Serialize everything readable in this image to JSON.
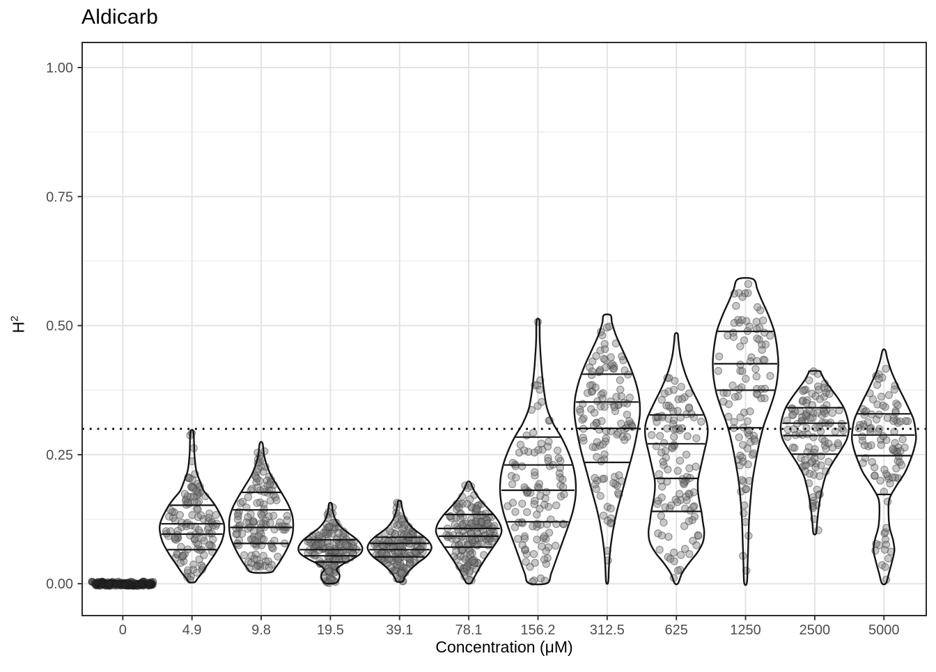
{
  "title": "Aldicarb",
  "axes": {
    "x_label": "Concentration (μM)",
    "y_label": "H",
    "y_label_sup": "2",
    "y_ticks": [
      {
        "label": "0.00",
        "value": 0.0
      },
      {
        "label": "0.25",
        "value": 0.25
      },
      {
        "label": "0.50",
        "value": 0.5
      },
      {
        "label": "0.75",
        "value": 0.75
      },
      {
        "label": "1.00",
        "value": 1.0
      }
    ],
    "y_minor": [
      0.125,
      0.375,
      0.625,
      0.875
    ]
  },
  "style": {
    "panel_border": "#2b2b2b",
    "grid_major": "#e4e4e4",
    "grid_minor": "#efefef",
    "tick_color": "#333333",
    "tick_label_color": "#4d4d4d",
    "violin_stroke": "#141414",
    "point_fill": "rgba(125,125,125,0.42)",
    "point_stroke": "rgba(65,65,65,0.5)",
    "zero_point_fill": "rgba(35,35,35,0.5)",
    "ref_line_color": "#000000"
  },
  "chart_data": {
    "type": "violin",
    "title": "Aldicarb",
    "xlabel": "Concentration (μM)",
    "ylabel": "H^2",
    "ylim": [
      0,
      1.0
    ],
    "grid": "on",
    "reference_line": {
      "value": 0.3,
      "style": "dotted"
    },
    "quantiles_drawn": [
      0.2,
      0.4,
      0.6,
      0.8
    ],
    "categories": [
      "0",
      "4.9",
      "9.8",
      "19.5",
      "39.1",
      "78.1",
      "156.2",
      "312.5",
      "625",
      "1250",
      "2500",
      "5000"
    ],
    "groups": [
      {
        "label": "0",
        "all_zero": true,
        "n": 130,
        "min": 0,
        "max": 0,
        "quantile_lines": [],
        "profile": [
          [
            0,
            44
          ]
        ]
      },
      {
        "label": "4.9",
        "n": 120,
        "min": 0.0,
        "max": 0.295,
        "quantile_lines": [
          0.066,
          0.096,
          0.116,
          0.152
        ],
        "profile": [
          [
            0.003,
            4
          ],
          [
            0.01,
            8
          ],
          [
            0.02,
            14
          ],
          [
            0.04,
            24
          ],
          [
            0.06,
            34
          ],
          [
            0.08,
            42
          ],
          [
            0.1,
            46
          ],
          [
            0.115,
            46
          ],
          [
            0.13,
            42
          ],
          [
            0.15,
            34
          ],
          [
            0.165,
            26
          ],
          [
            0.18,
            17
          ],
          [
            0.2,
            11
          ],
          [
            0.22,
            6
          ],
          [
            0.25,
            3.5
          ],
          [
            0.27,
            3
          ],
          [
            0.295,
            2
          ]
        ]
      },
      {
        "label": "9.8",
        "n": 130,
        "min": 0.01,
        "max": 0.275,
        "quantile_lines": [
          0.078,
          0.109,
          0.143,
          0.177
        ],
        "profile": [
          [
            0.022,
            13
          ],
          [
            0.03,
            20
          ],
          [
            0.05,
            30
          ],
          [
            0.07,
            38
          ],
          [
            0.09,
            44
          ],
          [
            0.11,
            46
          ],
          [
            0.13,
            45
          ],
          [
            0.15,
            40
          ],
          [
            0.17,
            32
          ],
          [
            0.19,
            23
          ],
          [
            0.21,
            14
          ],
          [
            0.23,
            8
          ],
          [
            0.25,
            4
          ],
          [
            0.272,
            2
          ]
        ]
      },
      {
        "label": "19.5",
        "n": 150,
        "min": 0.0,
        "max": 0.16,
        "quantile_lines": [
          0.042,
          0.054,
          0.066,
          0.085
        ],
        "profile": [
          [
            0.001,
            7
          ],
          [
            0.008,
            12
          ],
          [
            0.018,
            13
          ],
          [
            0.028,
            9
          ],
          [
            0.038,
            18
          ],
          [
            0.048,
            32
          ],
          [
            0.058,
            43
          ],
          [
            0.068,
            46
          ],
          [
            0.078,
            43
          ],
          [
            0.088,
            36
          ],
          [
            0.098,
            26
          ],
          [
            0.11,
            15
          ],
          [
            0.125,
            7
          ],
          [
            0.14,
            3.5
          ],
          [
            0.155,
            2
          ]
        ]
      },
      {
        "label": "39.1",
        "n": 150,
        "min": 0.004,
        "max": 0.16,
        "quantile_lines": [
          0.052,
          0.066,
          0.078,
          0.09
        ],
        "profile": [
          [
            0.004,
            4
          ],
          [
            0.012,
            7
          ],
          [
            0.025,
            14
          ],
          [
            0.04,
            26
          ],
          [
            0.05,
            36
          ],
          [
            0.06,
            43
          ],
          [
            0.07,
            46
          ],
          [
            0.08,
            43
          ],
          [
            0.09,
            36
          ],
          [
            0.1,
            26
          ],
          [
            0.11,
            17
          ],
          [
            0.125,
            9
          ],
          [
            0.14,
            5
          ],
          [
            0.152,
            3
          ],
          [
            0.16,
            2
          ]
        ]
      },
      {
        "label": "78.1",
        "n": 160,
        "min": 0.0,
        "max": 0.197,
        "quantile_lines": [
          0.071,
          0.092,
          0.107,
          0.134
        ],
        "profile": [
          [
            0.001,
            3
          ],
          [
            0.01,
            7
          ],
          [
            0.025,
            13
          ],
          [
            0.045,
            22
          ],
          [
            0.065,
            32
          ],
          [
            0.085,
            42
          ],
          [
            0.1,
            47
          ],
          [
            0.115,
            45
          ],
          [
            0.13,
            38
          ],
          [
            0.145,
            28
          ],
          [
            0.16,
            18
          ],
          [
            0.175,
            10
          ],
          [
            0.188,
            5
          ],
          [
            0.197,
            2
          ]
        ]
      },
      {
        "label": "156.2",
        "n": 110,
        "min": 0.0,
        "max": 0.51,
        "quantile_lines": [
          0.12,
          0.181,
          0.23,
          0.284
        ],
        "profile": [
          [
            0.001,
            13
          ],
          [
            0.02,
            19
          ],
          [
            0.05,
            27
          ],
          [
            0.08,
            35
          ],
          [
            0.11,
            43
          ],
          [
            0.14,
            50
          ],
          [
            0.17,
            54
          ],
          [
            0.2,
            54
          ],
          [
            0.23,
            50
          ],
          [
            0.26,
            42
          ],
          [
            0.285,
            33
          ],
          [
            0.31,
            22
          ],
          [
            0.34,
            13
          ],
          [
            0.38,
            8
          ],
          [
            0.42,
            5
          ],
          [
            0.46,
            3
          ],
          [
            0.48,
            2.5
          ],
          [
            0.51,
            2
          ]
        ]
      },
      {
        "label": "312.5",
        "n": 120,
        "min": 0.0,
        "max": 0.52,
        "quantile_lines": [
          0.235,
          0.301,
          0.352,
          0.406
        ],
        "profile": [
          [
            0.003,
            1.5
          ],
          [
            0.03,
            2.5
          ],
          [
            0.06,
            4
          ],
          [
            0.1,
            8
          ],
          [
            0.14,
            14
          ],
          [
            0.18,
            22
          ],
          [
            0.22,
            30
          ],
          [
            0.26,
            38
          ],
          [
            0.3,
            44
          ],
          [
            0.33,
            47
          ],
          [
            0.36,
            46
          ],
          [
            0.39,
            41
          ],
          [
            0.42,
            33
          ],
          [
            0.45,
            23
          ],
          [
            0.48,
            13
          ],
          [
            0.505,
            7
          ],
          [
            0.52,
            5
          ]
        ]
      },
      {
        "label": "625",
        "n": 115,
        "min": 0.0,
        "max": 0.484,
        "quantile_lines": [
          0.14,
          0.204,
          0.271,
          0.327
        ],
        "profile": [
          [
            0.001,
            2.5
          ],
          [
            0.02,
            8
          ],
          [
            0.04,
            18
          ],
          [
            0.06,
            30
          ],
          [
            0.08,
            38
          ],
          [
            0.1,
            40
          ],
          [
            0.12,
            38
          ],
          [
            0.14,
            36
          ],
          [
            0.16,
            33
          ],
          [
            0.18,
            31
          ],
          [
            0.2,
            31
          ],
          [
            0.22,
            34
          ],
          [
            0.25,
            39
          ],
          [
            0.28,
            44
          ],
          [
            0.3,
            45
          ],
          [
            0.32,
            42
          ],
          [
            0.35,
            32
          ],
          [
            0.38,
            21
          ],
          [
            0.41,
            12
          ],
          [
            0.44,
            6
          ],
          [
            0.47,
            3
          ],
          [
            0.484,
            2
          ]
        ]
      },
      {
        "label": "1250",
        "n": 100,
        "min": 0.0,
        "max": 0.59,
        "quantile_lines": [
          0.302,
          0.375,
          0.426,
          0.489
        ],
        "profile": [
          [
            0.002,
            2
          ],
          [
            0.04,
            3
          ],
          [
            0.08,
            4
          ],
          [
            0.12,
            5
          ],
          [
            0.16,
            7
          ],
          [
            0.2,
            10
          ],
          [
            0.24,
            15
          ],
          [
            0.28,
            21
          ],
          [
            0.31,
            27
          ],
          [
            0.34,
            35
          ],
          [
            0.37,
            42
          ],
          [
            0.4,
            46
          ],
          [
            0.43,
            47
          ],
          [
            0.46,
            45
          ],
          [
            0.49,
            41
          ],
          [
            0.52,
            33
          ],
          [
            0.55,
            23
          ],
          [
            0.57,
            17
          ],
          [
            0.59,
            11
          ]
        ]
      },
      {
        "label": "2500",
        "n": 115,
        "min": 0.098,
        "max": 0.412,
        "quantile_lines": [
          0.251,
          0.287,
          0.311,
          0.341
        ],
        "profile": [
          [
            0.098,
            2
          ],
          [
            0.12,
            3.5
          ],
          [
            0.15,
            6
          ],
          [
            0.18,
            10
          ],
          [
            0.21,
            16
          ],
          [
            0.235,
            26
          ],
          [
            0.26,
            38
          ],
          [
            0.28,
            46
          ],
          [
            0.3,
            49
          ],
          [
            0.32,
            47
          ],
          [
            0.34,
            42
          ],
          [
            0.36,
            33
          ],
          [
            0.38,
            22
          ],
          [
            0.395,
            14
          ],
          [
            0.408,
            9
          ],
          [
            0.412,
            7
          ]
        ]
      },
      {
        "label": "5000",
        "n": 100,
        "min": 0.0,
        "max": 0.452,
        "quantile_lines": [
          0.173,
          0.248,
          0.288,
          0.329
        ],
        "profile": [
          [
            0.001,
            3
          ],
          [
            0.02,
            7
          ],
          [
            0.045,
            12
          ],
          [
            0.065,
            15
          ],
          [
            0.085,
            13
          ],
          [
            0.11,
            8
          ],
          [
            0.14,
            6.5
          ],
          [
            0.165,
            8
          ],
          [
            0.19,
            18
          ],
          [
            0.215,
            30
          ],
          [
            0.24,
            38
          ],
          [
            0.26,
            43
          ],
          [
            0.28,
            46
          ],
          [
            0.3,
            45
          ],
          [
            0.32,
            42
          ],
          [
            0.35,
            32
          ],
          [
            0.38,
            21
          ],
          [
            0.41,
            11
          ],
          [
            0.435,
            5
          ],
          [
            0.452,
            2
          ]
        ]
      }
    ]
  }
}
